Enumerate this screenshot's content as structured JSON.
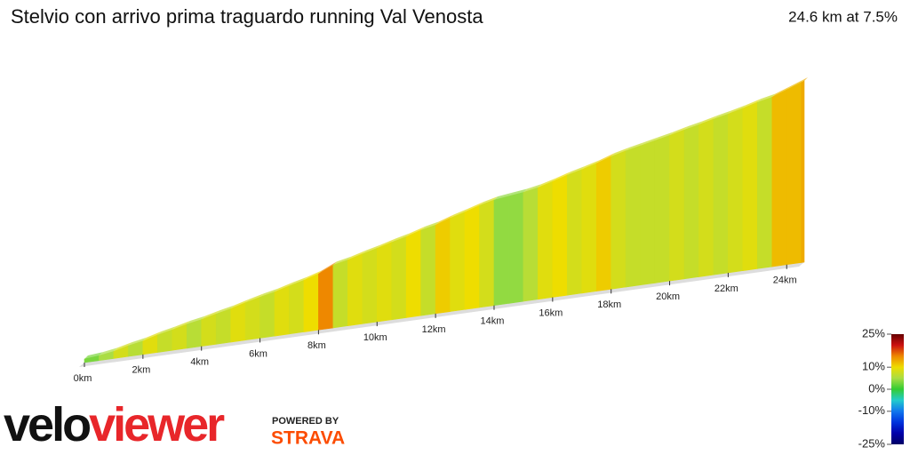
{
  "chart_data": {
    "type": "gradient-profile",
    "title": "Stelvio con arrivo prima traguardo running Val Venosta",
    "summary": "24.6 km at 7.5%",
    "x": [
      0,
      0.5,
      1,
      1.5,
      2,
      2.5,
      3,
      3.5,
      4,
      4.5,
      5,
      5.5,
      6,
      6.5,
      7,
      7.5,
      8,
      8.5,
      9,
      9.5,
      10,
      10.5,
      11,
      11.5,
      12,
      12.5,
      13,
      13.5,
      14,
      14.5,
      15,
      15.5,
      16,
      16.5,
      17,
      17.5,
      18,
      18.5,
      19,
      19.5,
      20,
      20.5,
      21,
      21.5,
      22,
      22.5,
      23,
      23.5,
      24,
      24.5
    ],
    "values": [
      3,
      5,
      8,
      6,
      9,
      7,
      8,
      6,
      8,
      7,
      9,
      8,
      7,
      9,
      8,
      10,
      15,
      7,
      9,
      8,
      9,
      8,
      10,
      7,
      11,
      9,
      10,
      8,
      4,
      4,
      6,
      9,
      10,
      8,
      9,
      11,
      8,
      7,
      7,
      7,
      8,
      7,
      8,
      7,
      8,
      9,
      7,
      12,
      12,
      13
    ],
    "xlim": [
      0,
      24.6
    ],
    "xticks": [
      {
        "value": 0,
        "label": "0km"
      },
      {
        "value": 2,
        "label": "2km"
      },
      {
        "value": 4,
        "label": "4km"
      },
      {
        "value": 6,
        "label": "6km"
      },
      {
        "value": 8,
        "label": "8km"
      },
      {
        "value": 10,
        "label": "10km"
      },
      {
        "value": 12,
        "label": "12km"
      },
      {
        "value": 14,
        "label": "14km"
      },
      {
        "value": 16,
        "label": "16km"
      },
      {
        "value": 18,
        "label": "18km"
      },
      {
        "value": 20,
        "label": "20km"
      },
      {
        "value": 22,
        "label": "22km"
      },
      {
        "value": 24,
        "label": "24km"
      }
    ],
    "clim": [
      -25,
      25
    ],
    "cticks": [
      {
        "value": 25,
        "label": "25%"
      },
      {
        "value": 10,
        "label": "10%"
      },
      {
        "value": 0,
        "label": "0%"
      },
      {
        "value": -10,
        "label": "-10%"
      },
      {
        "value": -25,
        "label": "-25%"
      }
    ],
    "colorscale": [
      "#000066",
      "#0000aa",
      "#0033dd",
      "#1177ee",
      "#22cccc",
      "#33cc33",
      "#aadd44",
      "#eedd00",
      "#ee8800",
      "#cc1111",
      "#660000"
    ]
  },
  "logo": {
    "velo": "velo",
    "viewer": "viewer",
    "powered": "POWERED BY",
    "strava": "STRAVA"
  }
}
